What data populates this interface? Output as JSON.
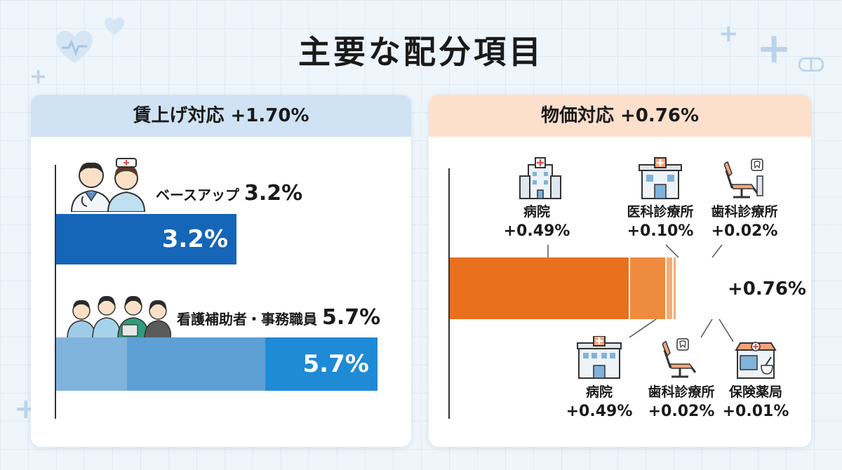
{
  "title": "主要な配分項目",
  "colors": {
    "blue_dark": "#1565b8",
    "blue_light": "#7fb3dc",
    "blue_mid": "#5e9fd6",
    "blue_bright": "#1f8ad6",
    "orange_dark": "#e8701e",
    "orange_mid": "#ee8b3f",
    "orange_light": "#f4ad73"
  },
  "chart_data": [
    {
      "type": "bar",
      "title": "賃上げ対応 +1.70%",
      "orientation": "horizontal",
      "categories": [
        "ベースアップ",
        "看護補助者・事務職員"
      ],
      "values": [
        3.2,
        5.7
      ],
      "value_labels": [
        "3.2%",
        "5.7%"
      ],
      "heading_values": [
        "3.2%",
        "5.7%"
      ],
      "xlim": [
        0,
        6.3
      ]
    },
    {
      "type": "bar",
      "title": "物価対応 +0.76%",
      "orientation": "horizontal",
      "stacked": true,
      "total_label": "+0.76%",
      "xlim": [
        0,
        0.85
      ],
      "top_labels": [
        {
          "name": "病院",
          "value": "+0.49%",
          "icon": "hospital-building-icon"
        },
        {
          "name": "医科診療所",
          "value": "+0.10%",
          "icon": "medical-clinic-icon"
        },
        {
          "name": "歯科診療所",
          "value": "+0.02%",
          "icon": "dental-chair-icon"
        }
      ],
      "bottom_labels": [
        {
          "name": "病院",
          "value": "+0.49%",
          "icon": "hospital-icon"
        },
        {
          "name": "歯科診療所",
          "value": "+0.02%",
          "icon": "dental-chair-icon"
        },
        {
          "name": "保険薬局",
          "value": "+0.01%",
          "icon": "pharmacy-icon"
        }
      ],
      "segments": [
        {
          "value": 0.49
        },
        {
          "value": 0.1
        },
        {
          "value": 0.02
        },
        {
          "value": 0.01
        }
      ]
    }
  ]
}
